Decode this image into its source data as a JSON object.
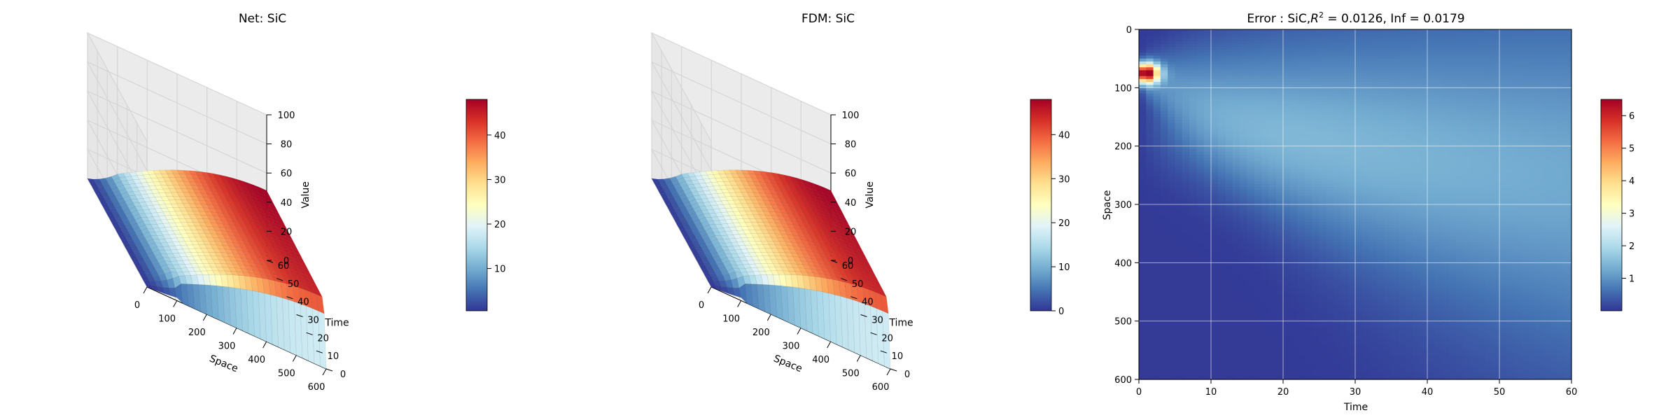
{
  "colors": {
    "pane": "#f2f2f2",
    "grid": "#d4d4d4",
    "axis": "#000000"
  },
  "colormap": [
    "#313695",
    "#4575b4",
    "#74add1",
    "#abd9e9",
    "#e0f3f8",
    "#ffffbf",
    "#fee090",
    "#fdae61",
    "#f46d43",
    "#d73027",
    "#a50026"
  ],
  "chart_data": [
    {
      "type": "surface",
      "title": "Net: SiC",
      "xlabel": "Space",
      "ylabel": "Time",
      "zlabel": "Value",
      "xticks": [
        0,
        100,
        200,
        300,
        400,
        500,
        600
      ],
      "yticks": [
        0,
        10,
        20,
        30,
        40,
        50,
        60
      ],
      "zticks": [
        0,
        20,
        40,
        60,
        80,
        100
      ],
      "xlim": [
        0,
        600
      ],
      "ylim": [
        0,
        60
      ],
      "zlim": [
        0,
        100
      ],
      "colorbar": {
        "ticks": [
          10,
          20,
          30,
          40
        ],
        "range": [
          0.5,
          48
        ]
      },
      "surface_shape": {
        "peak_value": 48,
        "peak_space": 600,
        "front_time": 0,
        "front_space_range": [
          0,
          100
        ]
      }
    },
    {
      "type": "surface",
      "title": "FDM: SiC",
      "xlabel": "Space",
      "ylabel": "Time",
      "zlabel": "Value",
      "xticks": [
        0,
        100,
        200,
        300,
        400,
        500,
        600
      ],
      "yticks": [
        0,
        10,
        20,
        30,
        40,
        50,
        60
      ],
      "zticks": [
        0,
        20,
        40,
        60,
        80,
        100
      ],
      "xlim": [
        0,
        600
      ],
      "ylim": [
        0,
        60
      ],
      "zlim": [
        0,
        100
      ],
      "colorbar": {
        "ticks": [
          0,
          10,
          20,
          30,
          40
        ],
        "range": [
          0,
          48
        ]
      },
      "surface_shape": {
        "peak_value": 48,
        "peak_space": 600,
        "front_time": 0,
        "front_space_range": [
          0,
          100
        ]
      }
    },
    {
      "type": "heatmap",
      "title_prefix": "Error : SiC,",
      "title_r": "R",
      "title_sup": "2",
      "title_suffix": " = 0.0126, Inf = 0.0179",
      "xlabel": "Time",
      "ylabel": "Space",
      "xticks": [
        0,
        10,
        20,
        30,
        40,
        50,
        60
      ],
      "yticks": [
        0,
        100,
        200,
        300,
        400,
        500,
        600
      ],
      "xlim": [
        0,
        60
      ],
      "ylim": [
        600,
        0
      ],
      "grid": true,
      "colorbar": {
        "ticks": [
          1,
          2,
          3,
          4,
          5,
          6
        ],
        "range": [
          0,
          6.5
        ]
      },
      "hotspot": {
        "time": 1,
        "space": 75,
        "value": 6.4
      }
    }
  ]
}
